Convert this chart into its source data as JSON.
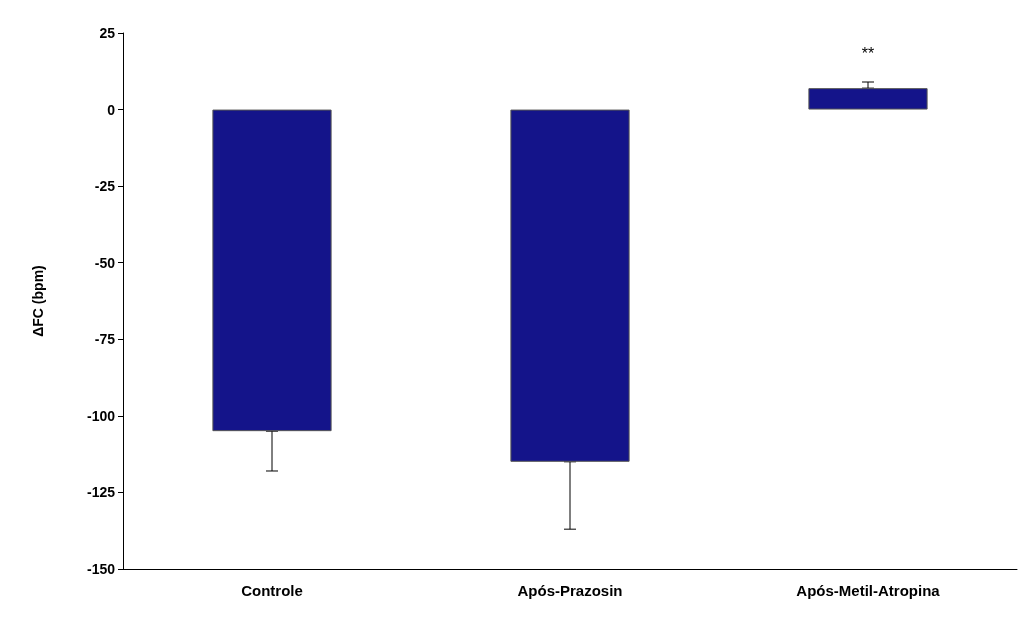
{
  "chart_data": {
    "type": "bar",
    "ylabel": "ΔFC (bpm)",
    "categories": [
      "Controle",
      "Após-Prazosin",
      "Após-Metil-Atropina"
    ],
    "values": [
      -105,
      -115,
      7
    ],
    "errors": [
      [
        -118,
        -105
      ],
      [
        -137,
        -115
      ],
      [
        7,
        9
      ]
    ],
    "color": "#14148a",
    "ylim": [
      -150,
      25
    ],
    "yticks": [
      -150,
      -125,
      -100,
      -75,
      -50,
      -25,
      0,
      25
    ],
    "grid": false,
    "annotations": [
      "**"
    ]
  }
}
